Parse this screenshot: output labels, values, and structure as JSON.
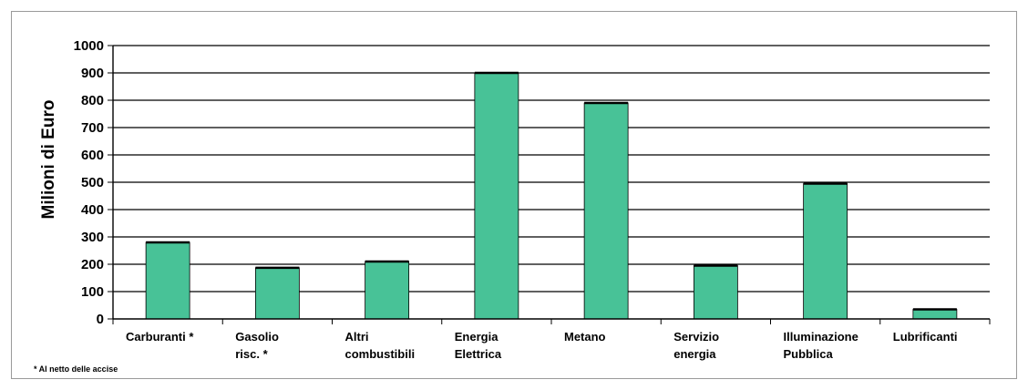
{
  "chart_data": {
    "type": "bar",
    "title": "",
    "xlabel": "",
    "ylabel": "Milioni di Euro",
    "ylim": [
      0,
      1000
    ],
    "yticks": [
      "0",
      "100",
      "200",
      "300",
      "400",
      "500",
      "600",
      "700",
      "800",
      "900",
      "1000"
    ],
    "categories": [
      "Carburanti *",
      "Gasolio risc. *",
      "Altri combustibili",
      "Energia Elettrica",
      "Metano",
      "Servizio energia",
      "Illuminazione Pubblica",
      "Lubrificanti"
    ],
    "category_label_lines": [
      [
        "Carburanti *"
      ],
      [
        "Gasolio",
        "risc. *"
      ],
      [
        "Altri",
        "combustibili"
      ],
      [
        "Energia",
        "Elettrica"
      ],
      [
        "Metano"
      ],
      [
        "Servizio",
        "energia"
      ],
      [
        "Illuminazione",
        "Pubblica"
      ],
      [
        "Lubrificanti"
      ]
    ],
    "values": [
      280,
      187,
      210,
      900,
      790,
      195,
      495,
      35
    ],
    "bar_color": "#48c297",
    "grid": true,
    "legend": "none",
    "footnote": "* Al netto delle accise"
  }
}
